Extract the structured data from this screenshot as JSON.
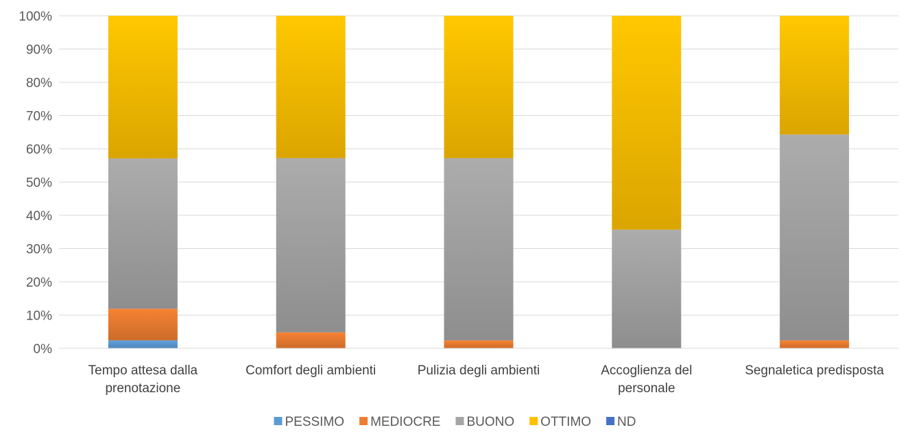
{
  "chart_data": {
    "type": "bar",
    "stacked": true,
    "percent": true,
    "title": "",
    "xlabel": "",
    "ylabel": "",
    "ylim": [
      0,
      100
    ],
    "yticks": [
      "0%",
      "10%",
      "20%",
      "30%",
      "40%",
      "50%",
      "60%",
      "70%",
      "80%",
      "90%",
      "100%"
    ],
    "grid": true,
    "legend_position": "bottom",
    "categories": [
      [
        "Tempo attesa dalla",
        "prenotazione"
      ],
      [
        "Comfort degli ambienti"
      ],
      [
        "Pulizia degli ambienti"
      ],
      [
        "Accoglienza del",
        "personale"
      ],
      [
        "Segnaletica predisposta"
      ]
    ],
    "series": [
      {
        "name": "PESSIMO",
        "color": "#5B9BD5",
        "values": [
          2.4,
          0,
          0,
          0,
          0
        ]
      },
      {
        "name": "MEDIOCRE",
        "color": "#ED7D31",
        "values": [
          9.5,
          4.8,
          2.4,
          0,
          2.4
        ]
      },
      {
        "name": "BUONO",
        "color": "#A5A5A5",
        "values": [
          45.2,
          52.4,
          54.8,
          35.7,
          61.9
        ]
      },
      {
        "name": "OTTIMO",
        "color": "#FFC000",
        "values": [
          42.9,
          42.8,
          42.8,
          64.3,
          35.7
        ]
      },
      {
        "name": "ND",
        "color": "#4472C4",
        "values": [
          0,
          0,
          0,
          0,
          0
        ]
      }
    ]
  }
}
